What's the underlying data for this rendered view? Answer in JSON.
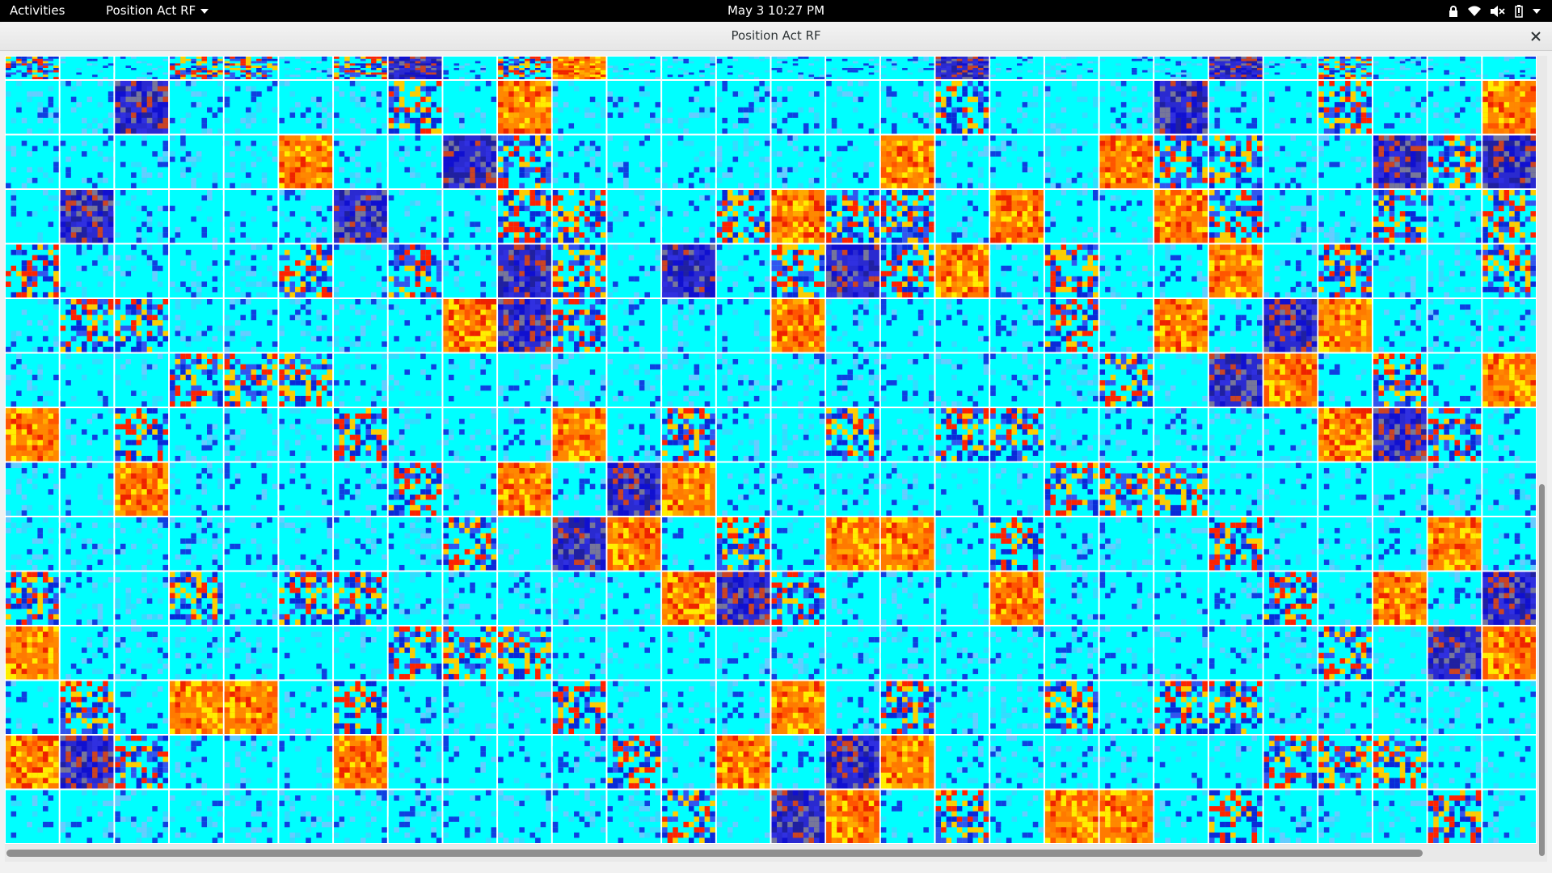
{
  "topbar": {
    "activities_label": "Activities",
    "app_menu_label": "Position Act RF",
    "clock": "May 3  10:27 PM",
    "icons": [
      "lock-icon",
      "wifi-icon",
      "volume-muted-icon",
      "battery-icon",
      "system-menu-caret-icon"
    ]
  },
  "window": {
    "title": "Position Act RF",
    "close_icon": "close-icon"
  },
  "receptive_field_grid": {
    "columns": 28,
    "rows": 15,
    "first_row_partially_visible": true,
    "colormap": [
      "#00ffff",
      "#0000cc",
      "#ff0000",
      "#ffff00"
    ],
    "cell_separator_color": "#ffffff"
  }
}
